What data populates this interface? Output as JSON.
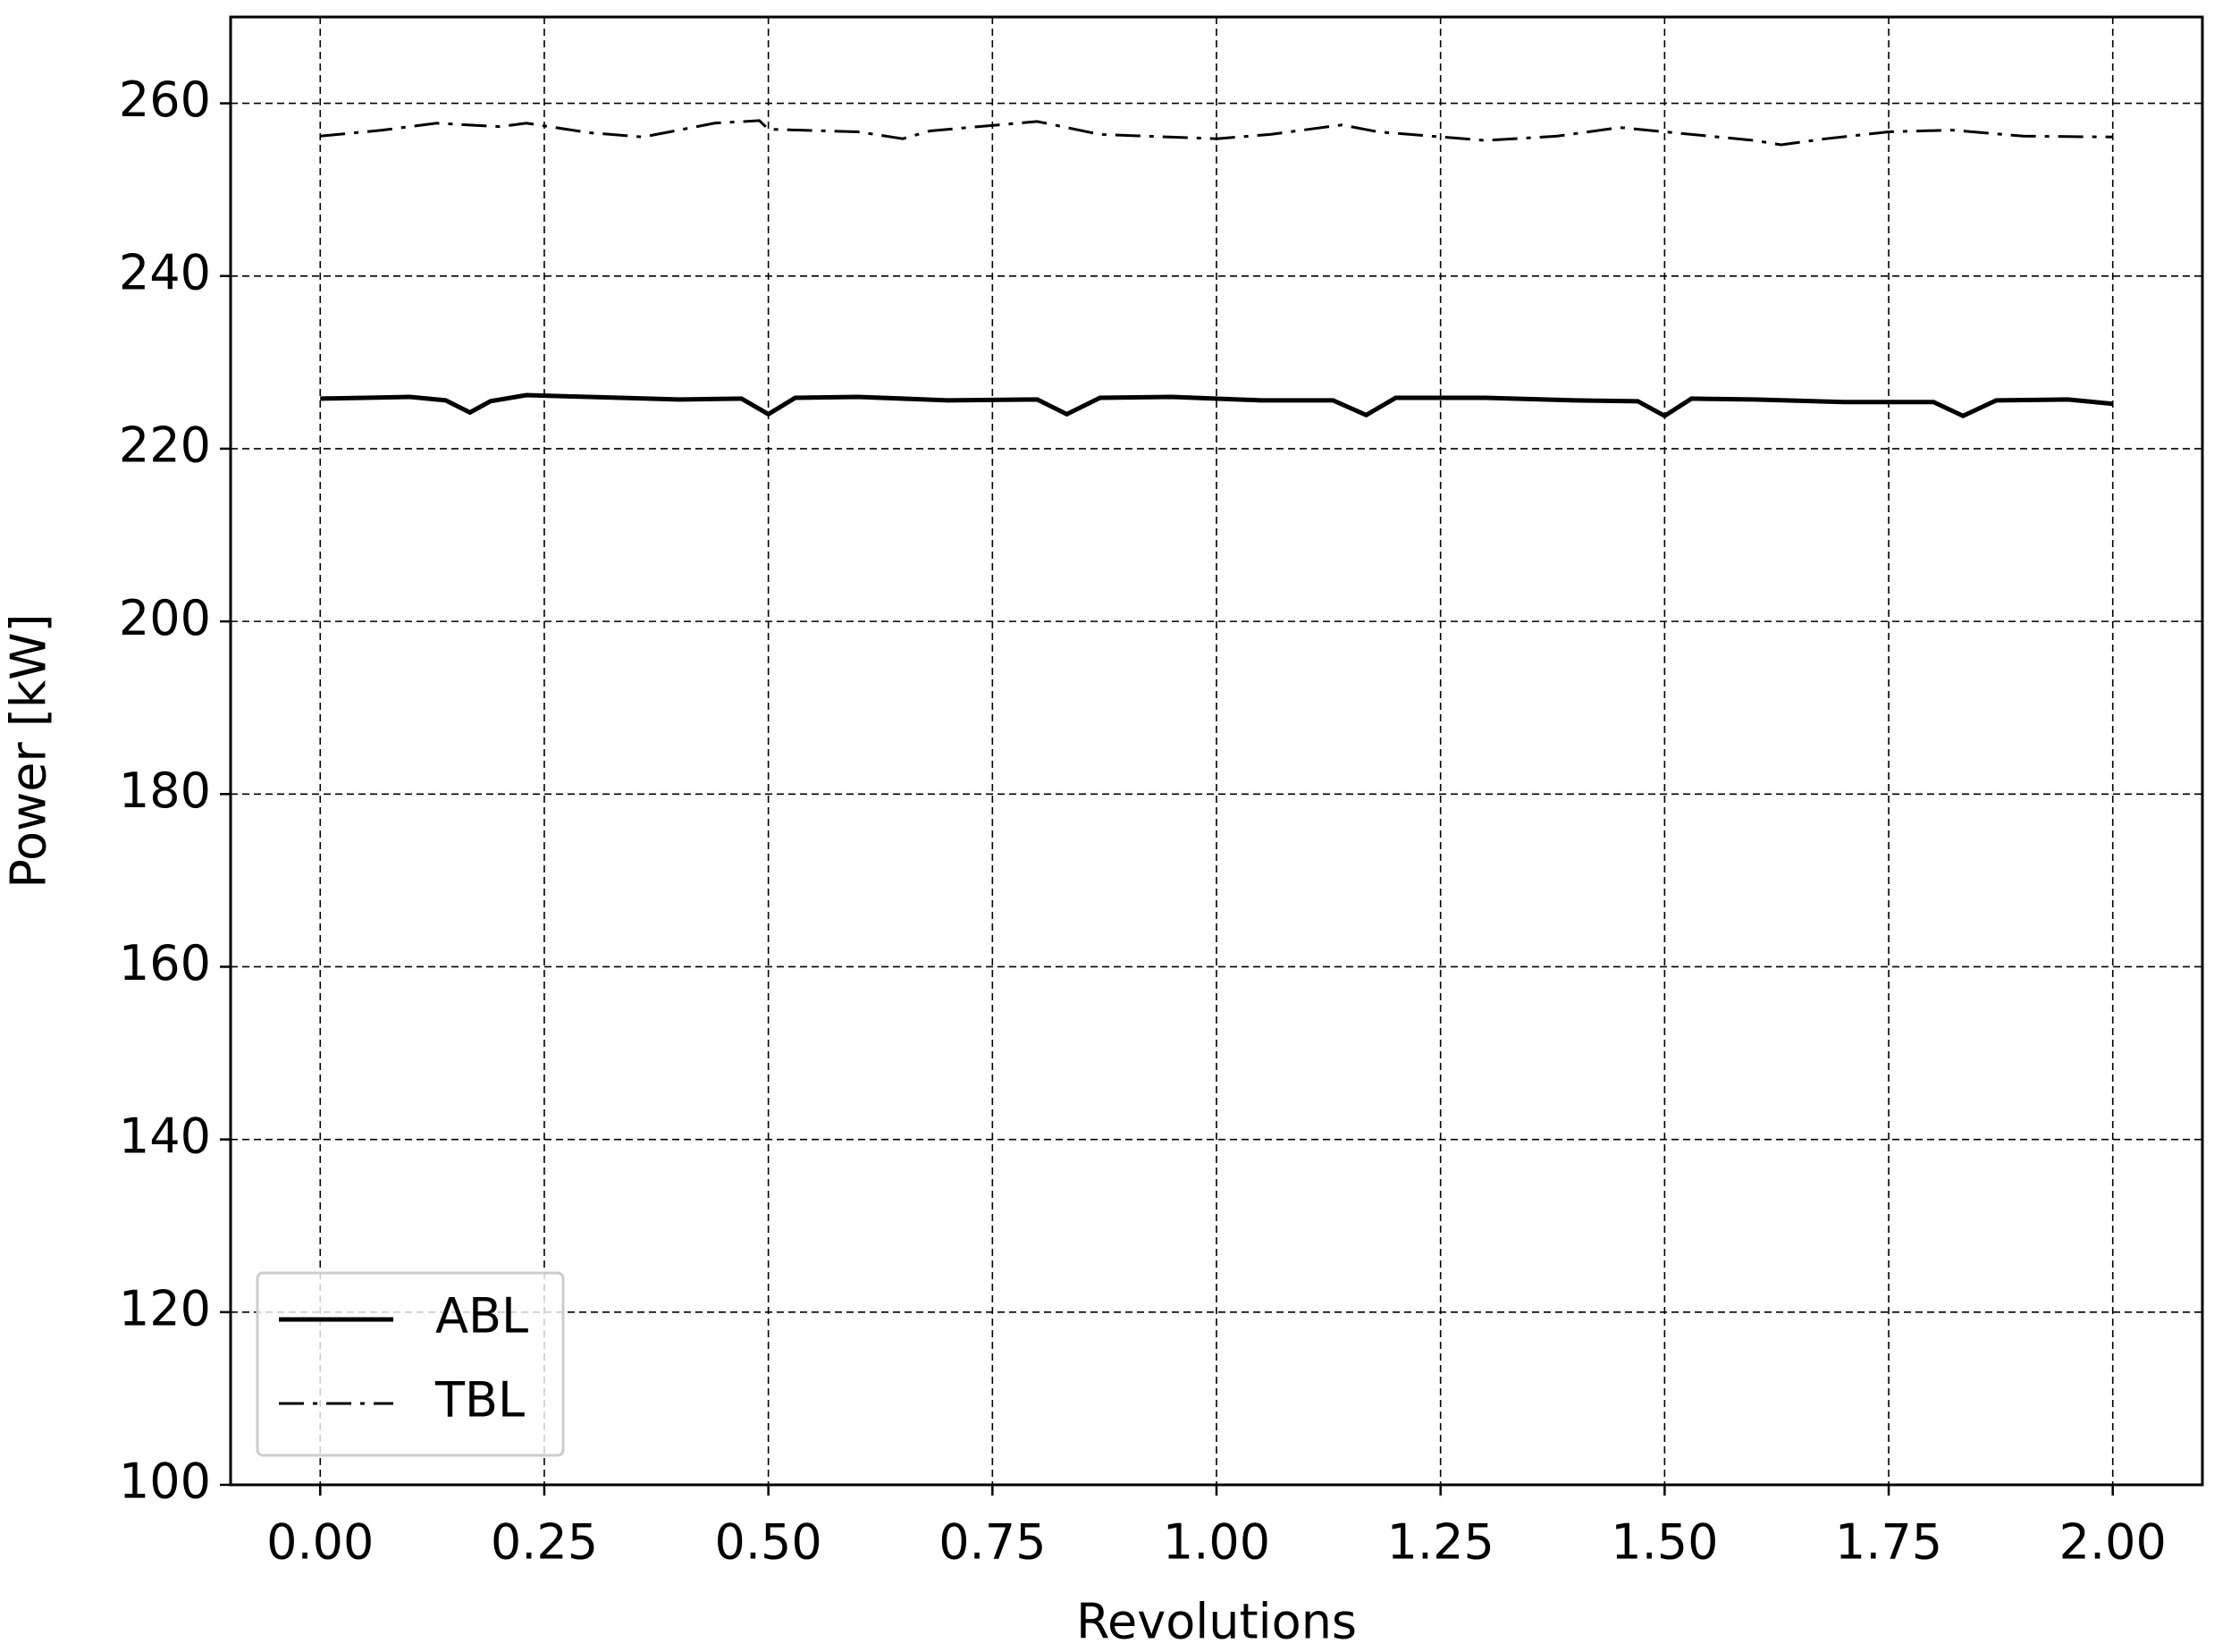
{
  "chart_data": {
    "type": "line",
    "x_label": "Revolutions",
    "y_label": "Power [kW]",
    "xlim": [
      -0.1,
      2.1
    ],
    "ylim": [
      100,
      270
    ],
    "xticks": [
      {
        "value": 0,
        "label": "0.00"
      },
      {
        "value": 0.25,
        "label": "0.25"
      },
      {
        "value": 0.5,
        "label": "0.50"
      },
      {
        "value": 0.75,
        "label": "0.75"
      },
      {
        "value": 1,
        "label": "1.00"
      },
      {
        "value": 1.25,
        "label": "1.25"
      },
      {
        "value": 1.5,
        "label": "1.50"
      },
      {
        "value": 1.75,
        "label": "1.75"
      },
      {
        "value": 2,
        "label": "2.00"
      }
    ],
    "yticks": [
      100,
      120,
      140,
      160,
      180,
      200,
      220,
      240,
      260
    ],
    "grid": true,
    "legend": "lower left",
    "series": [
      {
        "name": "ABL",
        "color": "#000000",
        "linestyle": "solid",
        "x": [
          0,
          0.05,
          0.1,
          0.14,
          0.167,
          0.19,
          0.23,
          0.3,
          0.4,
          0.47,
          0.5,
          0.53,
          0.6,
          0.7,
          0.8,
          0.833,
          0.87,
          0.95,
          1.05,
          1.13,
          1.167,
          1.2,
          1.3,
          1.4,
          1.47,
          1.5,
          1.53,
          1.6,
          1.7,
          1.8,
          1.833,
          1.87,
          1.95,
          2.0
        ],
        "values": [
          225.8,
          225.9,
          226.0,
          225.6,
          224.2,
          225.5,
          226.2,
          226.0,
          225.7,
          225.8,
          224.0,
          225.9,
          226.0,
          225.6,
          225.7,
          224.0,
          225.9,
          226.0,
          225.6,
          225.6,
          223.9,
          225.9,
          225.9,
          225.6,
          225.5,
          223.8,
          225.8,
          225.7,
          225.4,
          225.4,
          223.8,
          225.6,
          225.7,
          225.2
        ]
      },
      {
        "name": "TBL",
        "color": "#000000",
        "linestyle": "dashdot",
        "x": [
          0,
          0.07,
          0.13,
          0.2,
          0.23,
          0.3,
          0.36,
          0.44,
          0.49,
          0.5,
          0.6,
          0.65,
          0.68,
          0.8,
          0.87,
          1.0,
          1.06,
          1.14,
          1.18,
          1.3,
          1.38,
          1.45,
          1.5,
          1.6,
          1.63,
          1.68,
          1.75,
          1.82,
          1.9,
          2.0
        ],
        "values": [
          256.2,
          256.9,
          257.7,
          257.3,
          257.7,
          256.6,
          256.1,
          257.7,
          258.0,
          257.0,
          256.7,
          255.9,
          256.8,
          257.9,
          256.4,
          255.9,
          256.4,
          257.5,
          256.7,
          255.7,
          256.2,
          257.2,
          256.7,
          255.7,
          255.2,
          255.9,
          256.7,
          256.9,
          256.2,
          256.1
        ]
      }
    ]
  }
}
